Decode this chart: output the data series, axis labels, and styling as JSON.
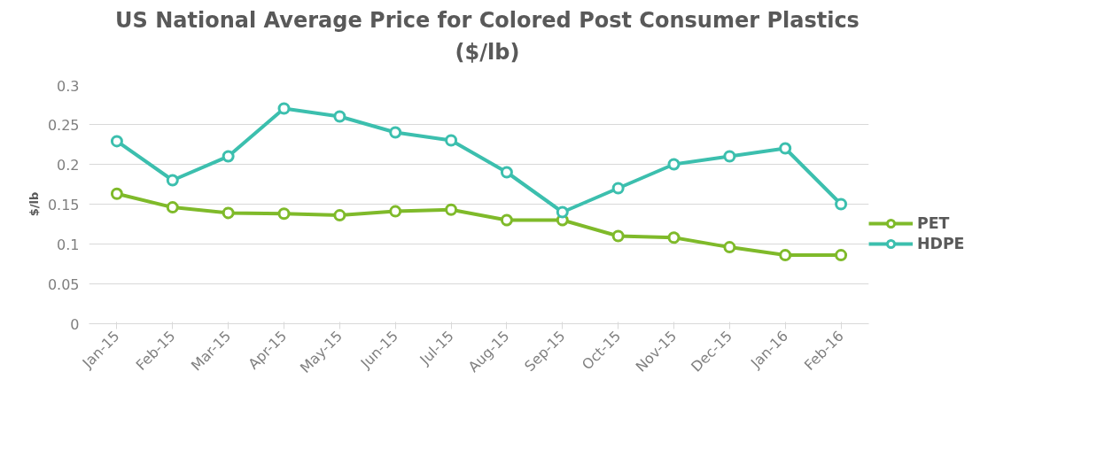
{
  "chart_data": {
    "type": "line",
    "title": "US National Average Price for Colored Post Consumer Plastics\n($/lb)",
    "ylabel": "$/lb",
    "categories": [
      "Jan-15",
      "Feb-15",
      "Mar-15",
      "Apr-15",
      "May-15",
      "Jun-15",
      "Jul-15",
      "Aug-15",
      "Sep-15",
      "Oct-15",
      "Nov-15",
      "Dec-15",
      "Jan-16",
      "Feb-16"
    ],
    "series": [
      {
        "name": "PET",
        "color": "#7fba2a",
        "values": [
          0.163,
          0.146,
          0.139,
          0.138,
          0.136,
          0.141,
          0.143,
          0.13,
          0.13,
          0.11,
          0.108,
          0.096,
          0.086,
          0.086
        ]
      },
      {
        "name": "HDPE",
        "color": "#3cbfae",
        "values": [
          0.229,
          0.18,
          0.21,
          0.27,
          0.26,
          0.24,
          0.23,
          0.19,
          0.14,
          0.17,
          0.2,
          0.21,
          0.22,
          0.15
        ]
      }
    ],
    "ylim": [
      0,
      0.3
    ],
    "yticks": [
      0,
      0.05,
      0.1,
      0.15,
      0.2,
      0.25,
      0.3
    ],
    "grid": "y",
    "legend": "right",
    "marker": "circle",
    "line_style": "solid"
  }
}
